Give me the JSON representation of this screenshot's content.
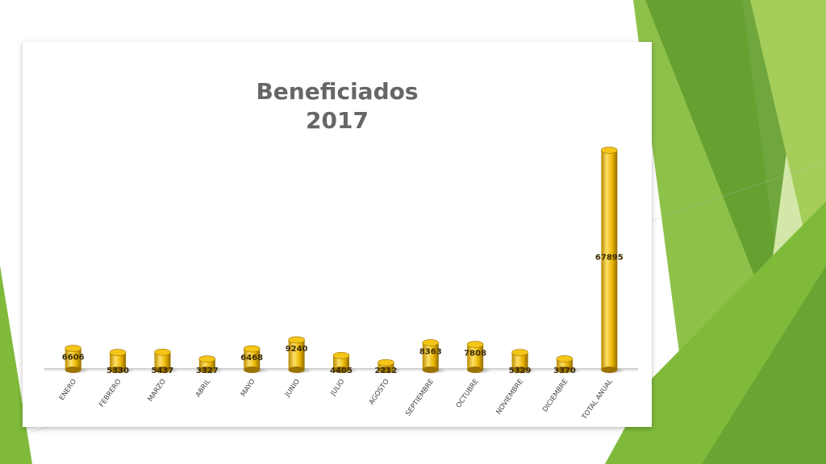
{
  "chart_data": {
    "type": "bar",
    "title": [
      "Beneficiados",
      "2017"
    ],
    "xlabel": "",
    "ylabel": "",
    "categories": [
      "ENERO",
      "FEBRERO",
      "MARZO",
      "ABRIL",
      "MAYO",
      "JUNIO",
      "JULIO",
      "AGOSTO",
      "SEPTIEMBRE",
      "OCTUBRE",
      "NOVIEMBRE",
      "DICIEMBRE",
      "TOTAL ANUAL"
    ],
    "values": [
      6606,
      5330,
      5437,
      3327,
      6468,
      9240,
      4405,
      2212,
      8363,
      7808,
      5329,
      3370,
      67895
    ],
    "ylim": [
      0,
      72000
    ],
    "grid": false,
    "legend": "none",
    "bar_style": "3d-cylinder",
    "colors": {
      "bar_light": "#ffe066",
      "bar_mid": "#e8b400",
      "bar_dark": "#9c7300",
      "bar_top": "#f5c518",
      "label_text": "#3a2a00",
      "title_text": "#666666"
    }
  },
  "background": {
    "colors": {
      "green_dark": "#5e9a2c",
      "green_mid": "#7fba3a",
      "green_light": "#a5cd5a",
      "green_pale": "#d3e8a8"
    }
  }
}
